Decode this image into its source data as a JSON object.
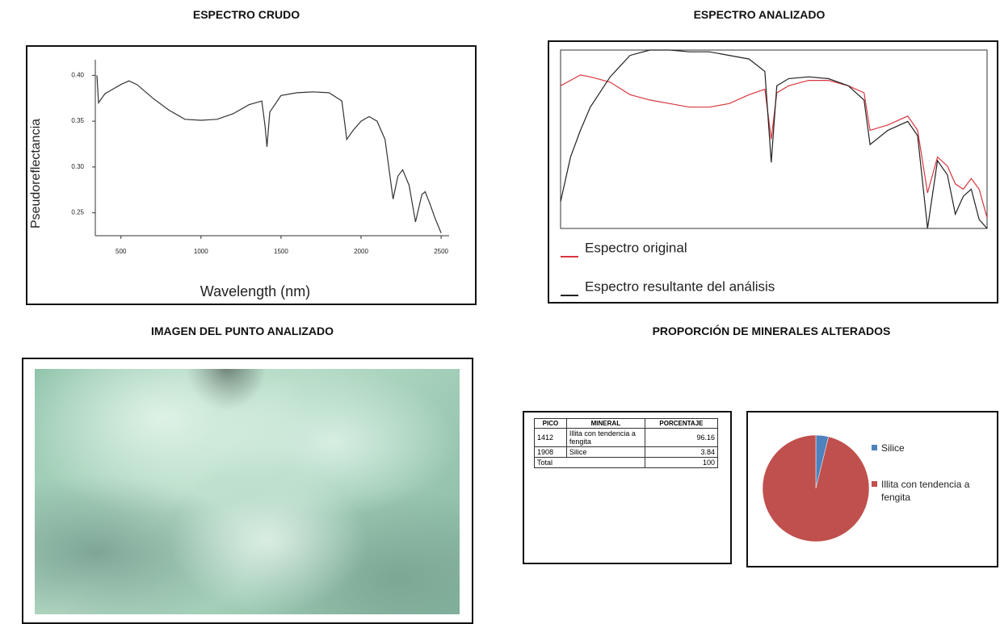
{
  "chart_data": [
    {
      "type": "line",
      "title": "ESPECTRO CRUDO",
      "x_label": "Wavelength (nm)",
      "y_label": "Pseudoreflectancia",
      "color": "#333333",
      "x": [
        350,
        360,
        380,
        400,
        450,
        500,
        550,
        600,
        700,
        800,
        900,
        1000,
        1100,
        1200,
        1300,
        1380,
        1400,
        1412,
        1430,
        1500,
        1600,
        1700,
        1800,
        1880,
        1900,
        1910,
        1950,
        2000,
        2050,
        2100,
        2150,
        2200,
        2230,
        2260,
        2300,
        2340,
        2380,
        2400,
        2430,
        2460,
        2500
      ],
      "values": [
        0.4,
        0.37,
        0.375,
        0.38,
        0.385,
        0.39,
        0.394,
        0.39,
        0.375,
        0.362,
        0.352,
        0.351,
        0.352,
        0.358,
        0.368,
        0.372,
        0.345,
        0.322,
        0.36,
        0.378,
        0.381,
        0.382,
        0.381,
        0.372,
        0.345,
        0.33,
        0.34,
        0.35,
        0.355,
        0.35,
        0.33,
        0.265,
        0.29,
        0.297,
        0.28,
        0.24,
        0.27,
        0.273,
        0.26,
        0.245,
        0.228
      ],
      "xlim": [
        340,
        2550
      ],
      "ylim": [
        0.225,
        0.41
      ],
      "xticks": [
        500,
        1000,
        1500,
        2000,
        2500
      ],
      "yticks": [
        0.25,
        {
          "value": 0.3,
          "label": "0.30"
        },
        0.35,
        {
          "value": 0.4,
          "label": "0.40"
        }
      ]
    },
    {
      "type": "line",
      "title": "ESPECTRO ANALIZADO",
      "xlim": [
        350,
        2500
      ],
      "ylim": [
        0,
        1
      ],
      "x": [
        350,
        400,
        450,
        500,
        600,
        700,
        800,
        900,
        1000,
        1100,
        1200,
        1300,
        1380,
        1412,
        1440,
        1500,
        1600,
        1700,
        1800,
        1880,
        1910,
        2000,
        2100,
        2150,
        2200,
        2250,
        2300,
        2340,
        2380,
        2420,
        2460,
        2500
      ],
      "series": [
        {
          "name": "Espectro original",
          "color": "#d9363e",
          "values": [
            0.8,
            0.83,
            0.86,
            0.85,
            0.82,
            0.75,
            0.72,
            0.7,
            0.68,
            0.68,
            0.7,
            0.75,
            0.78,
            0.5,
            0.76,
            0.8,
            0.83,
            0.83,
            0.8,
            0.76,
            0.55,
            0.58,
            0.63,
            0.55,
            0.2,
            0.4,
            0.35,
            0.25,
            0.22,
            0.28,
            0.22,
            0.06
          ]
        },
        {
          "name": "Espectro resultante del análisis",
          "color": "#222222",
          "values": [
            0.15,
            0.4,
            0.55,
            0.68,
            0.85,
            0.97,
            1.0,
            1.0,
            0.99,
            0.99,
            0.97,
            0.95,
            0.88,
            0.37,
            0.8,
            0.84,
            0.85,
            0.84,
            0.8,
            0.72,
            0.47,
            0.55,
            0.6,
            0.52,
            0.0,
            0.38,
            0.3,
            0.08,
            0.18,
            0.22,
            0.05,
            0.0
          ]
        }
      ]
    },
    {
      "type": "pie",
      "title": "PROPORCIÓN DE MINERALES ALTERADOS",
      "categories": [
        "Silice",
        "Illita con tendencia a fengita"
      ],
      "values": [
        3.84,
        96.16
      ],
      "colors": [
        "#4f81bd",
        "#c0504d"
      ]
    }
  ],
  "image": {
    "title": "IMAGEN DEL PUNTO ANALIZADO"
  },
  "table": {
    "header": [
      "PICO",
      "MINERAL",
      "PORCENTAJE"
    ],
    "rows": [
      [
        "1412",
        "Illita con tendencia a fengita",
        "96.16"
      ],
      [
        "1908",
        "Silice",
        "3.84"
      ]
    ],
    "total": [
      "Total",
      "100"
    ]
  }
}
